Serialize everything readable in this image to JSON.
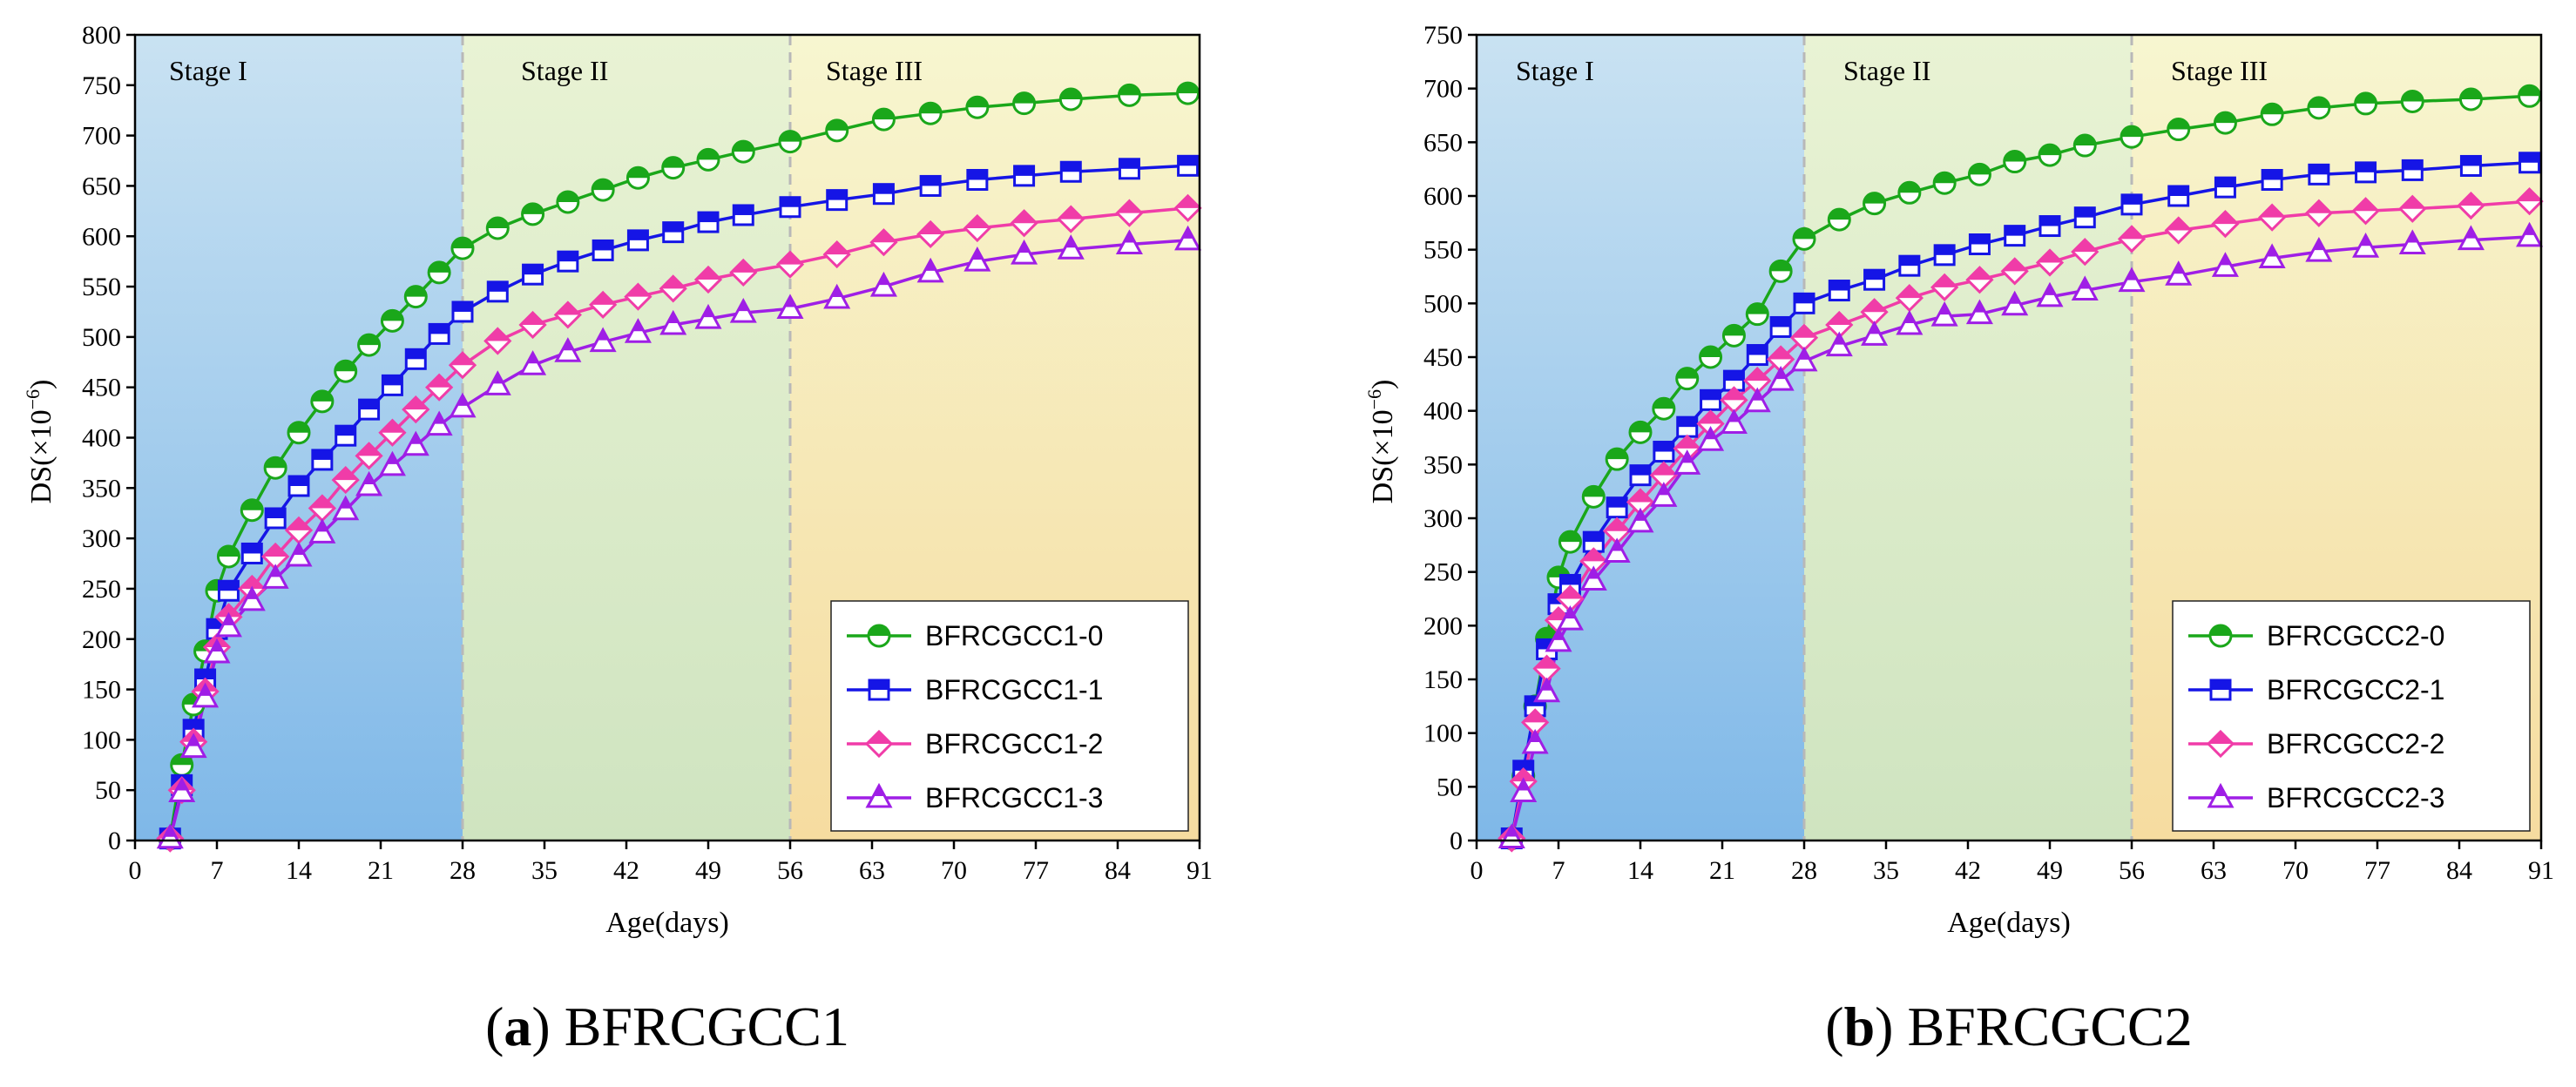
{
  "colors": {
    "stage1_top": "#c9e2f2",
    "stage1_bottom": "#7fb8e8",
    "stage2_top": "#e9f3d4",
    "stage2_bottom": "#cfe4c0",
    "stage3_top": "#f7f6d0",
    "stage3_bottom": "#f6dca0",
    "axis": "#000000",
    "divider": "#b8b8b8"
  },
  "chart_data": [
    {
      "type": "line",
      "caption_letter": "a",
      "caption_text": " BFRCGCC1",
      "xlabel": "Age(days)",
      "ylabel": "DS(×10",
      "ylabel_exp": "−6",
      "ylabel_close": ")",
      "xlim": [
        0,
        91
      ],
      "ylim": [
        0,
        800
      ],
      "xticks": [
        0,
        7,
        14,
        21,
        28,
        35,
        42,
        49,
        56,
        63,
        70,
        77,
        84,
        91
      ],
      "yticks": [
        0,
        50,
        100,
        150,
        200,
        250,
        300,
        350,
        400,
        450,
        500,
        550,
        600,
        650,
        700,
        750,
        800
      ],
      "stages": [
        {
          "label": "Stage I",
          "from": 0,
          "to": 28
        },
        {
          "label": "Stage II",
          "from": 28,
          "to": 56
        },
        {
          "label": "Stage III",
          "from": 56,
          "to": 91
        }
      ],
      "legend_position": "bottom-right",
      "series": [
        {
          "name": "BFRCGCC1-0",
          "color": "#1aa71a",
          "marker": "circle",
          "x": [
            3,
            4,
            5,
            6,
            7,
            8,
            10,
            12,
            14,
            16,
            18,
            20,
            22,
            24,
            26,
            28,
            31,
            34,
            37,
            40,
            43,
            46,
            49,
            52,
            56,
            60,
            64,
            68,
            72,
            76,
            80,
            85,
            90
          ],
          "y": [
            2,
            75,
            135,
            188,
            248,
            282,
            328,
            370,
            405,
            436,
            466,
            492,
            516,
            540,
            564,
            588,
            608,
            622,
            634,
            646,
            658,
            668,
            676,
            684,
            694,
            705,
            716,
            722,
            728,
            732,
            736,
            740,
            742
          ]
        },
        {
          "name": "BFRCGCC1-1",
          "color": "#1515e6",
          "marker": "square",
          "x": [
            3,
            4,
            5,
            6,
            7,
            8,
            10,
            12,
            14,
            16,
            18,
            20,
            22,
            24,
            26,
            28,
            31,
            34,
            37,
            40,
            43,
            46,
            49,
            52,
            56,
            60,
            64,
            68,
            72,
            76,
            80,
            85,
            90
          ],
          "y": [
            2,
            55,
            110,
            160,
            210,
            248,
            285,
            320,
            352,
            378,
            402,
            428,
            452,
            478,
            503,
            525,
            545,
            562,
            575,
            586,
            596,
            604,
            614,
            621,
            629,
            636,
            642,
            650,
            656,
            660,
            664,
            667,
            670
          ]
        },
        {
          "name": "BFRCGCC1-2",
          "color": "#f03ca8",
          "marker": "diamond",
          "x": [
            3,
            4,
            5,
            6,
            7,
            8,
            10,
            12,
            14,
            16,
            18,
            20,
            22,
            24,
            26,
            28,
            31,
            34,
            37,
            40,
            43,
            46,
            49,
            52,
            56,
            60,
            64,
            68,
            72,
            76,
            80,
            85,
            90
          ],
          "y": [
            2,
            50,
            98,
            148,
            192,
            222,
            250,
            282,
            308,
            330,
            358,
            382,
            405,
            428,
            450,
            472,
            496,
            512,
            522,
            532,
            540,
            548,
            557,
            564,
            572,
            582,
            594,
            602,
            608,
            613,
            617,
            623,
            628
          ]
        },
        {
          "name": "BFRCGCC1-3",
          "color": "#9f1ee6",
          "marker": "triangle",
          "x": [
            3,
            4,
            5,
            6,
            7,
            8,
            10,
            12,
            14,
            16,
            18,
            20,
            22,
            24,
            26,
            28,
            31,
            34,
            37,
            40,
            43,
            46,
            49,
            52,
            56,
            60,
            64,
            68,
            72,
            76,
            80,
            85,
            90
          ],
          "y": [
            2,
            48,
            92,
            142,
            186,
            212,
            238,
            260,
            282,
            305,
            328,
            352,
            372,
            392,
            412,
            430,
            452,
            472,
            485,
            495,
            504,
            512,
            518,
            524,
            528,
            538,
            550,
            564,
            575,
            582,
            587,
            592,
            596
          ]
        }
      ]
    },
    {
      "type": "line",
      "caption_letter": "b",
      "caption_text": " BFRCGCC2",
      "xlabel": "Age(days)",
      "ylabel": "DS(×10",
      "ylabel_exp": "−6",
      "ylabel_close": ")",
      "xlim": [
        0,
        91
      ],
      "ylim": [
        0,
        750
      ],
      "xticks": [
        0,
        7,
        14,
        21,
        28,
        35,
        42,
        49,
        56,
        63,
        70,
        77,
        84,
        91
      ],
      "yticks": [
        0,
        50,
        100,
        150,
        200,
        250,
        300,
        350,
        400,
        450,
        500,
        550,
        600,
        650,
        700,
        750
      ],
      "stages": [
        {
          "label": "Stage I",
          "from": 0,
          "to": 28
        },
        {
          "label": "Stage II",
          "from": 28,
          "to": 56
        },
        {
          "label": "Stage III",
          "from": 56,
          "to": 91
        }
      ],
      "legend_position": "bottom-right",
      "series": [
        {
          "name": "BFRCGCC2-0",
          "color": "#1aa71a",
          "marker": "circle",
          "x": [
            3,
            4,
            5,
            6,
            7,
            8,
            10,
            12,
            14,
            16,
            18,
            20,
            22,
            24,
            26,
            28,
            31,
            34,
            37,
            40,
            43,
            46,
            49,
            52,
            56,
            60,
            64,
            68,
            72,
            76,
            80,
            85,
            90
          ],
          "y": [
            2,
            60,
            125,
            188,
            245,
            278,
            320,
            355,
            380,
            402,
            430,
            450,
            470,
            490,
            530,
            560,
            578,
            593,
            603,
            612,
            620,
            632,
            638,
            647,
            655,
            662,
            668,
            676,
            682,
            686,
            688,
            690,
            693
          ]
        },
        {
          "name": "BFRCGCC2-1",
          "color": "#1515e6",
          "marker": "square",
          "x": [
            3,
            4,
            5,
            6,
            7,
            8,
            10,
            12,
            14,
            16,
            18,
            20,
            22,
            24,
            26,
            28,
            31,
            34,
            37,
            40,
            43,
            46,
            49,
            52,
            56,
            60,
            64,
            68,
            72,
            76,
            80,
            85,
            90
          ],
          "y": [
            2,
            65,
            125,
            178,
            220,
            238,
            278,
            310,
            340,
            362,
            385,
            410,
            428,
            452,
            478,
            500,
            512,
            522,
            535,
            545,
            555,
            563,
            572,
            580,
            592,
            600,
            608,
            615,
            620,
            622,
            624,
            628,
            631
          ]
        },
        {
          "name": "BFRCGCC2-2",
          "color": "#f03ca8",
          "marker": "diamond",
          "x": [
            3,
            4,
            5,
            6,
            7,
            8,
            10,
            12,
            14,
            16,
            18,
            20,
            22,
            24,
            26,
            28,
            31,
            34,
            37,
            40,
            43,
            46,
            49,
            52,
            56,
            60,
            64,
            68,
            72,
            76,
            80,
            85,
            90
          ],
          "y": [
            2,
            55,
            110,
            160,
            205,
            225,
            260,
            288,
            315,
            340,
            365,
            388,
            410,
            428,
            448,
            468,
            480,
            492,
            505,
            515,
            522,
            530,
            538,
            548,
            560,
            568,
            574,
            580,
            584,
            586,
            588,
            591,
            595
          ]
        },
        {
          "name": "BFRCGCC2-3",
          "color": "#9f1ee6",
          "marker": "triangle",
          "x": [
            3,
            4,
            5,
            6,
            7,
            8,
            10,
            12,
            14,
            16,
            18,
            20,
            22,
            24,
            26,
            28,
            31,
            34,
            37,
            40,
            43,
            46,
            49,
            52,
            56,
            60,
            64,
            68,
            72,
            76,
            80,
            85,
            90
          ],
          "y": [
            2,
            45,
            90,
            138,
            185,
            205,
            242,
            268,
            296,
            320,
            350,
            372,
            388,
            408,
            428,
            446,
            460,
            470,
            480,
            488,
            490,
            498,
            506,
            512,
            520,
            526,
            534,
            542,
            548,
            552,
            555,
            559,
            562
          ]
        }
      ]
    }
  ]
}
